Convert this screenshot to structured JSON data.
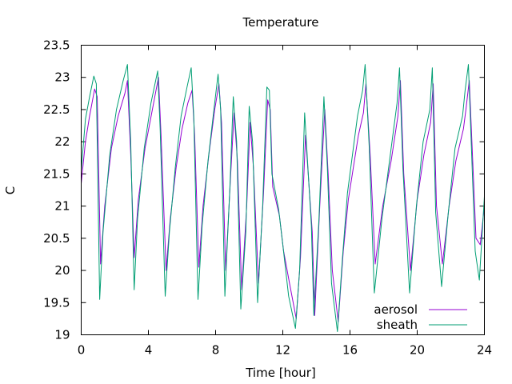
{
  "chart_data": {
    "type": "line",
    "title": "Temperature",
    "xlabel": "Time [hour]",
    "ylabel": "C",
    "xlim": [
      0,
      24
    ],
    "ylim": [
      19,
      23.5
    ],
    "xticks": [
      0,
      4,
      8,
      12,
      16,
      20,
      24
    ],
    "yticks": [
      19,
      19.5,
      20,
      20.5,
      21,
      21.5,
      22,
      22.5,
      23,
      23.5
    ],
    "grid": false,
    "legend_position": "bottom-right",
    "series": [
      {
        "name": "aerosol",
        "color": "#9400d3",
        "x": [
          0,
          0.25,
          0.5,
          0.8,
          0.95,
          1.15,
          1.4,
          1.8,
          2.2,
          2.6,
          2.75,
          2.95,
          3.15,
          3.4,
          3.8,
          4.2,
          4.6,
          4.75,
          5.05,
          5.3,
          5.65,
          6.0,
          6.35,
          6.6,
          6.75,
          7.0,
          7.25,
          7.6,
          7.95,
          8.2,
          8.35,
          8.6,
          8.9,
          9.1,
          9.3,
          9.55,
          9.85,
          10.05,
          10.25,
          10.55,
          10.85,
          11.1,
          11.25,
          11.4,
          11.8,
          12.05,
          12.4,
          12.8,
          13.05,
          13.35,
          13.75,
          13.9,
          14.2,
          14.5,
          14.7,
          14.95,
          15.3,
          15.6,
          15.9,
          16.2,
          16.5,
          16.8,
          16.95,
          17.2,
          17.5,
          17.95,
          18.45,
          18.85,
          19.0,
          19.2,
          19.6,
          20.0,
          20.4,
          20.8,
          20.95,
          21.15,
          21.5,
          21.9,
          22.3,
          22.75,
          22.9,
          23.1,
          23.5,
          23.75,
          24.0
        ],
        "y": [
          21.35,
          22.0,
          22.4,
          22.82,
          22.7,
          20.1,
          21.0,
          21.9,
          22.4,
          22.75,
          22.95,
          21.8,
          20.2,
          21.1,
          21.9,
          22.45,
          23.0,
          22.1,
          20.0,
          20.8,
          21.6,
          22.2,
          22.6,
          22.8,
          22.1,
          20.05,
          21.0,
          21.8,
          22.5,
          22.9,
          22.3,
          20.0,
          21.5,
          22.45,
          21.7,
          19.7,
          21.0,
          22.3,
          21.6,
          19.8,
          21.2,
          22.65,
          22.5,
          21.3,
          20.85,
          20.3,
          19.8,
          19.25,
          20.2,
          22.1,
          20.6,
          19.3,
          21.0,
          22.5,
          21.5,
          20.0,
          19.2,
          20.3,
          21.1,
          21.6,
          22.1,
          22.45,
          22.9,
          21.8,
          20.1,
          21.0,
          21.7,
          22.4,
          22.95,
          21.5,
          20.0,
          21.1,
          21.8,
          22.3,
          22.9,
          21.0,
          20.1,
          21.0,
          21.7,
          22.2,
          22.5,
          22.95,
          20.5,
          20.4,
          21.0
        ]
      },
      {
        "name": "sheath",
        "color": "#009e73",
        "x": [
          0,
          0.25,
          0.5,
          0.75,
          0.9,
          1.1,
          1.3,
          1.7,
          2.1,
          2.5,
          2.75,
          2.95,
          3.15,
          3.35,
          3.75,
          4.15,
          4.55,
          4.7,
          5.0,
          5.25,
          5.6,
          5.95,
          6.3,
          6.55,
          6.7,
          6.95,
          7.2,
          7.55,
          7.9,
          8.15,
          8.3,
          8.55,
          8.85,
          9.05,
          9.25,
          9.5,
          9.8,
          10.0,
          10.2,
          10.5,
          10.8,
          11.05,
          11.2,
          11.35,
          11.75,
          12.0,
          12.35,
          12.75,
          13.0,
          13.3,
          13.7,
          13.85,
          14.15,
          14.45,
          14.65,
          14.9,
          15.25,
          15.55,
          15.85,
          16.15,
          16.45,
          16.75,
          16.9,
          17.15,
          17.45,
          17.9,
          18.4,
          18.8,
          18.95,
          19.15,
          19.55,
          19.95,
          20.35,
          20.75,
          20.9,
          21.1,
          21.45,
          21.85,
          22.25,
          22.7,
          22.85,
          23.05,
          23.45,
          23.7,
          24.0
        ],
        "y": [
          21.55,
          22.35,
          22.7,
          23.02,
          22.9,
          19.55,
          20.6,
          21.8,
          22.5,
          22.95,
          23.2,
          22.0,
          19.7,
          20.8,
          21.9,
          22.6,
          23.1,
          22.2,
          19.6,
          20.6,
          21.6,
          22.4,
          22.85,
          23.15,
          22.4,
          19.55,
          20.7,
          21.7,
          22.5,
          23.05,
          22.5,
          19.6,
          21.3,
          22.7,
          22.0,
          19.4,
          20.6,
          22.55,
          22.0,
          19.5,
          21.0,
          22.85,
          22.8,
          21.5,
          20.95,
          20.4,
          19.6,
          19.1,
          20.0,
          22.45,
          20.7,
          19.3,
          20.8,
          22.7,
          21.6,
          19.8,
          19.05,
          20.2,
          21.2,
          21.8,
          22.4,
          22.8,
          23.2,
          21.9,
          19.65,
          20.8,
          21.8,
          22.6,
          23.15,
          21.6,
          19.65,
          21.0,
          22.0,
          22.5,
          23.15,
          20.9,
          19.75,
          20.9,
          21.9,
          22.4,
          22.8,
          23.2,
          20.3,
          19.85,
          21.15
        ]
      }
    ]
  }
}
